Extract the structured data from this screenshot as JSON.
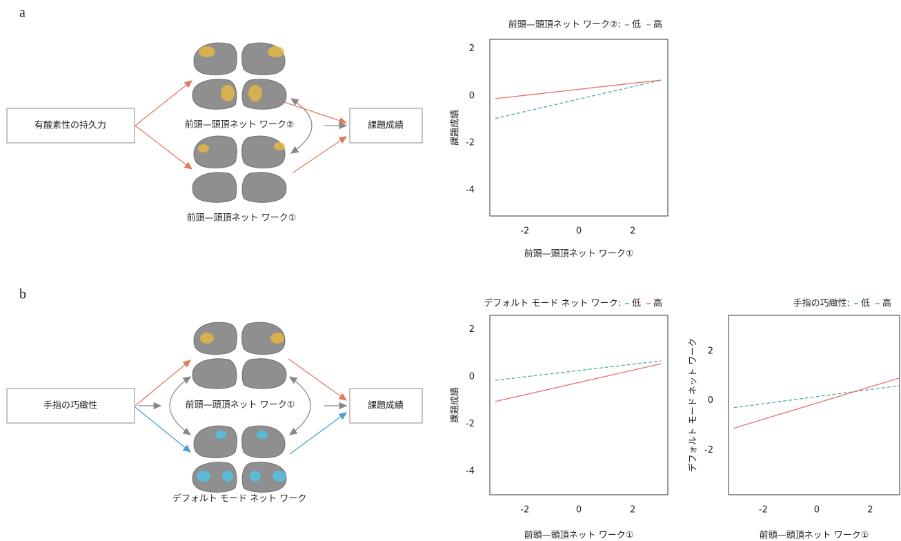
{
  "panels": [
    {
      "label": "a",
      "source": "有酸素性の持久力",
      "target": "課題成績",
      "network_top": "前頭—頭頂ネット ワーク②",
      "network_bottom": "前頭—頭頂ネット ワーク①"
    },
    {
      "label": "b",
      "source": "手指の巧緻性",
      "target": "課題成績",
      "network_top": "前頭—頭頂ネット ワーク①",
      "network_bottom": "デフォルト モード ネット ワーク"
    }
  ],
  "chart_data": [
    {
      "type": "line",
      "title": "前頭—頭頂ネット ワーク②:",
      "x_label": "前頭—頭頂ネット ワーク①",
      "y_label": "課題成績",
      "x": [
        -3.1,
        3.05
      ],
      "xlim": [
        -3.3,
        3.3
      ],
      "xticks": [
        -2,
        0,
        2
      ],
      "ylim": [
        -5.1,
        2.4
      ],
      "yticks": [
        2,
        0,
        -2,
        -4
      ],
      "series": [
        {
          "name": "低",
          "color": "#4aa9a8",
          "line_style": "dashed",
          "values": [
            -0.96,
            0.67
          ]
        },
        {
          "name": "高",
          "color": "#e3726a",
          "line_style": "solid",
          "values": [
            -0.12,
            0.67
          ]
        }
      ]
    },
    {
      "type": "line",
      "title": "デフォルト モード ネット ワーク:",
      "x_label": "前頭—頭頂ネット ワーク①",
      "y_label": "課題成績",
      "x": [
        -3.1,
        3.05
      ],
      "xlim": [
        -3.3,
        3.3
      ],
      "xticks": [
        -2,
        0,
        2
      ],
      "ylim": [
        -5,
        2.6
      ],
      "yticks": [
        2,
        0,
        -2,
        -4
      ],
      "series": [
        {
          "name": "低",
          "color": "#4aa9a8",
          "line_style": "dashed",
          "values": [
            -0.15,
            0.67
          ]
        },
        {
          "name": "高",
          "color": "#e3726a",
          "line_style": "solid",
          "values": [
            -1.05,
            0.55
          ]
        }
      ]
    },
    {
      "type": "line",
      "title": "手指の巧緻性:",
      "x_label": "前頭—頭頂ネット ワーク①",
      "y_label": "デフォルト モード ネット ワーク",
      "x": [
        -3.1,
        3.1
      ],
      "xlim": [
        -3.3,
        3.1
      ],
      "xticks": [
        -2,
        0,
        2
      ],
      "ylim": [
        -3.8,
        3.45
      ],
      "yticks": [
        2,
        0,
        -2
      ],
      "series": [
        {
          "name": "低",
          "color": "#4aa9a8",
          "line_style": "dashed",
          "values": [
            -0.28,
            0.61
          ]
        },
        {
          "name": "高",
          "color": "#e3726a",
          "line_style": "solid",
          "values": [
            -1.11,
            0.92
          ]
        }
      ]
    }
  ]
}
